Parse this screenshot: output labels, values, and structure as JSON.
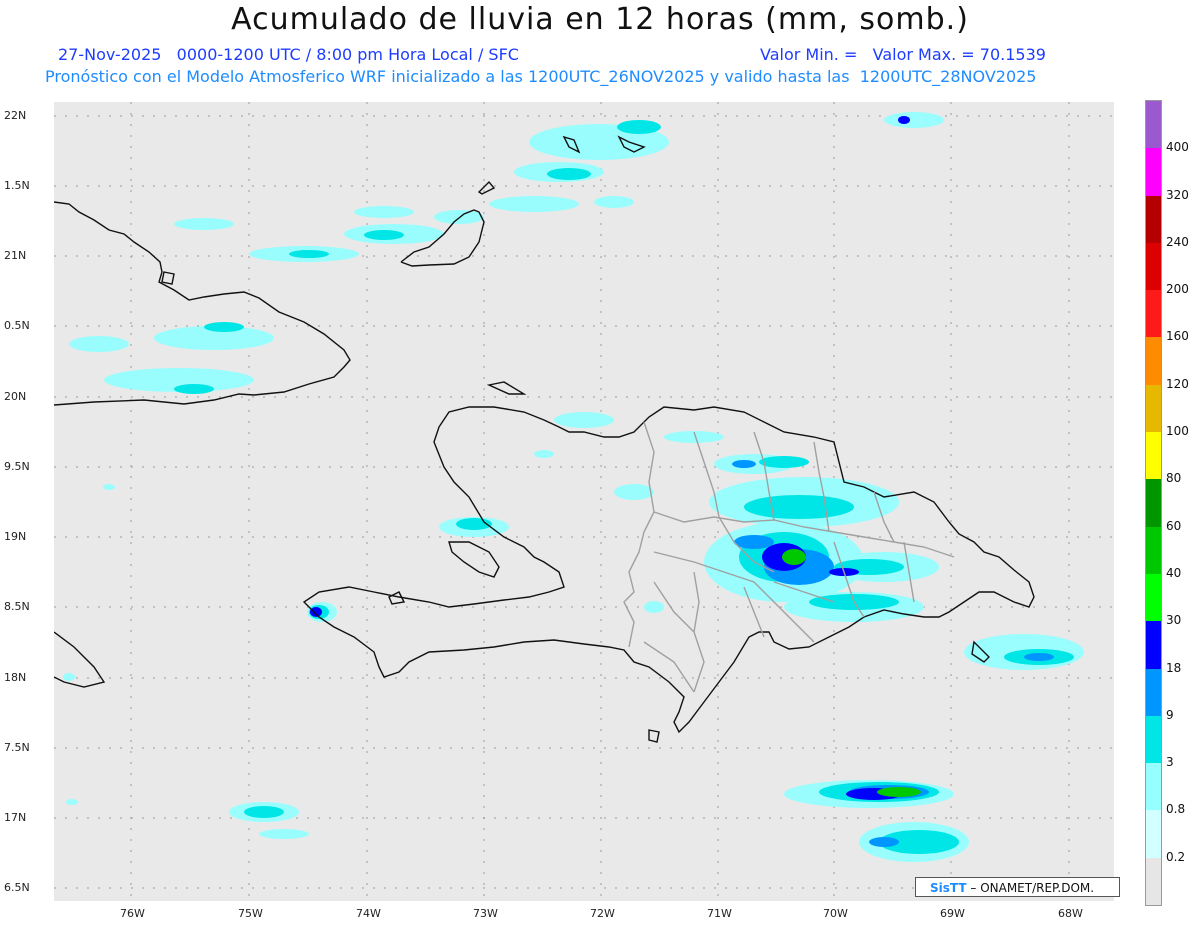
{
  "header": {
    "title": "Acumulado de lluvia en 12 horas (mm, somb.)",
    "line1_left": "27-Nov-2025   0000-1200 UTC / 8:00 pm Hora Local / SFC",
    "line1_right": "Valor Min. =   Valor Max. = 70.1539",
    "line2": "Pronóstico con el Modelo Atmosferico WRF inicializado a las 1200UTC_26NOV2025 y valido hasta las  1200UTC_28NOV2025"
  },
  "y_axis_labels": [
    "22N",
    "1.5N",
    "21N",
    "0.5N",
    "20N",
    "9.5N",
    "19N",
    "8.5N",
    "18N",
    "7.5N",
    "17N",
    "6.5N"
  ],
  "x_axis_labels": [
    "76W",
    "75W",
    "74W",
    "73W",
    "72W",
    "71W",
    "70W",
    "69W",
    "68W"
  ],
  "colorbar": {
    "labels": [
      "400",
      "320",
      "240",
      "200",
      "160",
      "120",
      "100",
      "80",
      "60",
      "40",
      "30",
      "18",
      "9",
      "3",
      "0.8",
      "0.2"
    ],
    "colors": [
      "#9b59d0",
      "#ff00ff",
      "#b40000",
      "#dc0000",
      "#ff1a1a",
      "#ff8c00",
      "#e6b800",
      "#ffff00",
      "#009600",
      "#00c800",
      "#00ff00",
      "#0000ff",
      "#0096ff",
      "#00e6e6",
      "#96ffff",
      "#d2ffff",
      "#e6e6e6"
    ]
  },
  "credit": {
    "logo": "SisTT",
    "text": "– ONAMET/REP.DOM."
  }
}
